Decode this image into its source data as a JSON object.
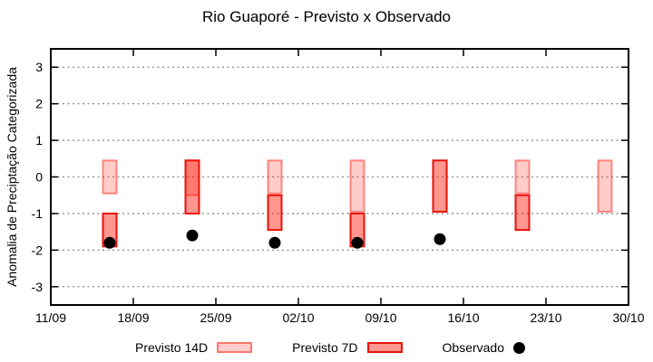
{
  "chart_data": {
    "type": "bar",
    "title": "Rio Guaporé - Previsto x Observado",
    "ylabel": "Anomalia de Preciptação Categorizada",
    "ylim": [
      -3.5,
      3.5
    ],
    "yticks": [
      3,
      2,
      1,
      0,
      -1,
      -2,
      -3
    ],
    "grid": true,
    "legend_position": "bottom",
    "x_axis": {
      "total_days": 49,
      "ticks": [
        {
          "label": "11/09",
          "day": 0
        },
        {
          "label": "18/09",
          "day": 7
        },
        {
          "label": "25/09",
          "day": 14
        },
        {
          "label": "02/10",
          "day": 21
        },
        {
          "label": "09/10",
          "day": 28
        },
        {
          "label": "16/10",
          "day": 35
        },
        {
          "label": "23/10",
          "day": 42
        },
        {
          "label": "30/10",
          "day": 49
        }
      ]
    },
    "series": [
      {
        "name": "Previsto 14D",
        "type": "range-bar",
        "style": {
          "fill": "rgba(255,16,0,0.21)",
          "stroke": "rgba(255,16,0,0.45)"
        },
        "points": [
          {
            "date": "16/09",
            "day": 5,
            "high": 0.45,
            "low": -0.45
          },
          {
            "date": "23/09",
            "day": 12,
            "high": 0.45,
            "low": -0.5
          },
          {
            "date": "30/09",
            "day": 19,
            "high": 0.45,
            "low": -0.45
          },
          {
            "date": "07/10",
            "day": 26,
            "high": 0.45,
            "low": -0.95
          },
          {
            "date": "21/10",
            "day": 40,
            "high": 0.45,
            "low": -0.45
          },
          {
            "date": "28/10",
            "day": 47,
            "high": 0.45,
            "low": -0.95
          }
        ]
      },
      {
        "name": "Previsto 7D",
        "type": "range-bar",
        "style": {
          "fill": "rgba(255,16,0,0.44)",
          "stroke": "#e81309"
        },
        "points": [
          {
            "date": "16/09",
            "day": 5,
            "high": -1.0,
            "low": -1.9
          },
          {
            "date": "23/09",
            "day": 12,
            "high": 0.45,
            "low": -1.0
          },
          {
            "date": "30/09",
            "day": 19,
            "high": -0.5,
            "low": -1.45
          },
          {
            "date": "07/10",
            "day": 26,
            "high": -1.0,
            "low": -1.9
          },
          {
            "date": "14/10",
            "day": 33,
            "high": 0.45,
            "low": -0.95
          },
          {
            "date": "21/10",
            "day": 40,
            "high": -0.5,
            "low": -1.45
          }
        ]
      },
      {
        "name": "Observado",
        "type": "point",
        "style": {
          "fill": "#000000"
        },
        "points": [
          {
            "date": "16/09",
            "day": 5,
            "value": -1.8
          },
          {
            "date": "23/09",
            "day": 12,
            "value": -1.6
          },
          {
            "date": "30/09",
            "day": 19,
            "value": -1.8
          },
          {
            "date": "07/10",
            "day": 26,
            "value": -1.8
          },
          {
            "date": "14/10",
            "day": 33,
            "value": -1.7
          }
        ]
      }
    ],
    "palette": {
      "background": "#ffffff",
      "axis": "#000000",
      "grid": "#888888",
      "previsto_14d": "rgba(255,16,0,0.21)",
      "previsto_7d": "rgba(255,16,0,0.44)",
      "observado": "#000000"
    }
  }
}
